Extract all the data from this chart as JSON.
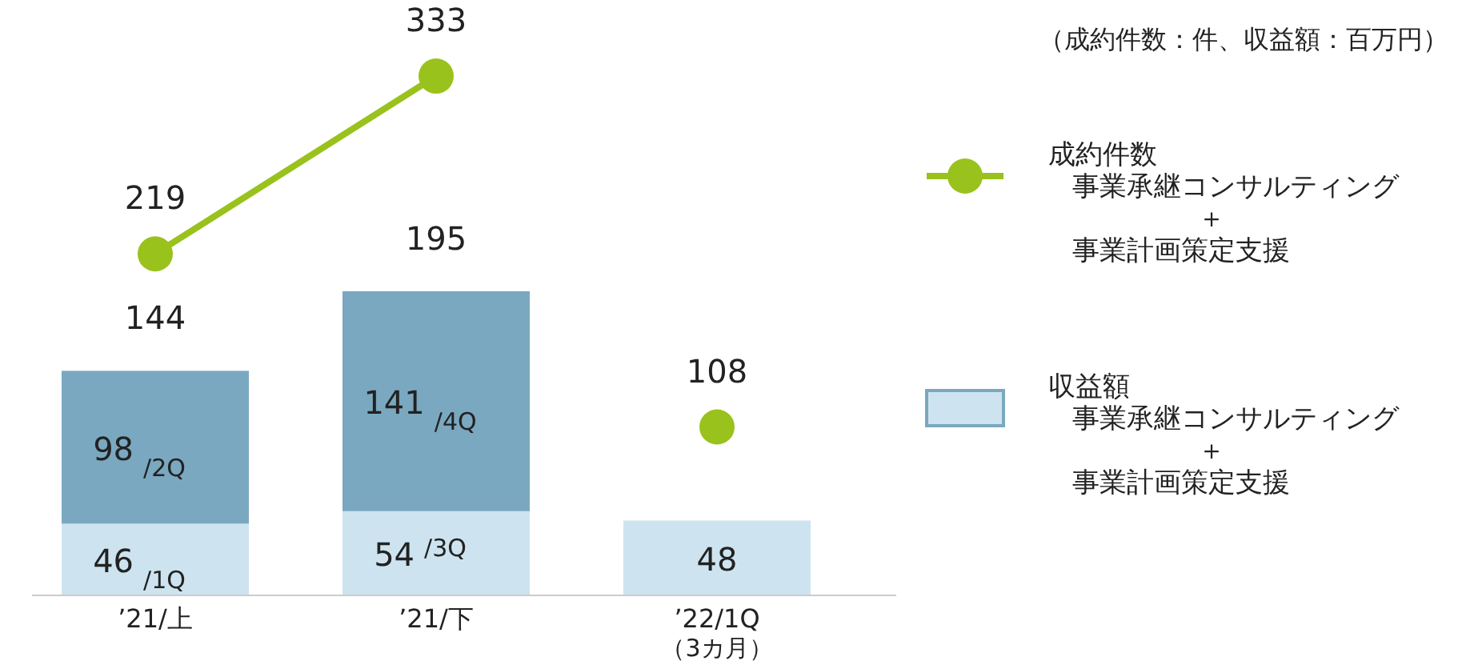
{
  "chart_data": {
    "type": "bar",
    "stacked": true,
    "categories": [
      "’21/上",
      "’21/下",
      "’22/1Q\n（3カ月）"
    ],
    "series": [
      {
        "name": "収益額",
        "color": "#cde4f0",
        "values": [
          46,
          54,
          48
        ],
        "value_labels": [
          "46$_{/1Q}$",
          "54$^{/3Q}$",
          "48"
        ]
      },
      {
        "color": "#7aa8c0",
        "values": [
          98,
          141,
          null
        ],
        "value_labels": [
          "98$_{/2Q}$",
          "141$_{/4Q}$",
          null
        ]
      },
      {
        "type": "line",
        "name": "成約件数",
        "color": "#99c21c",
        "values": [
          219,
          333,
          null
        ],
        "value_labels": [
          "219",
          "333",
          null
        ]
      },
      {
        "type": "scatter",
        "color": "#99c21c",
        "values": [
          null,
          null,
          108
        ],
        "value_labels": [
          null,
          null,
          "108"
        ]
      }
    ],
    "totals": [
      "144",
      "195",
      null
    ],
    "marker": "circle",
    "legend": "right",
    "annotations": [
      "（成約件数：件、収益額：百万円）",
      "事業承継コンサルティング＋事業計画策定支援",
      "事業承継コンサルティング＋事業計画策定支援"
    ]
  }
}
